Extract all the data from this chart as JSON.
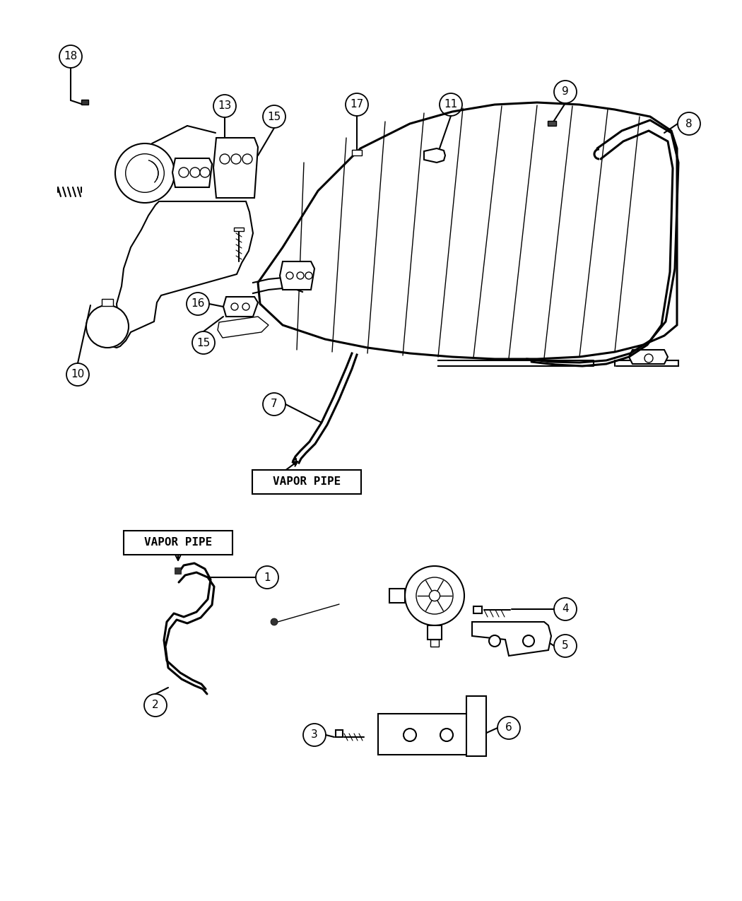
{
  "bg_color": "#ffffff",
  "line_color": "#000000",
  "fig_width": 10.5,
  "fig_height": 12.75,
  "dpi": 100,
  "vapor_pipe_label": "VAPOR PIPE"
}
